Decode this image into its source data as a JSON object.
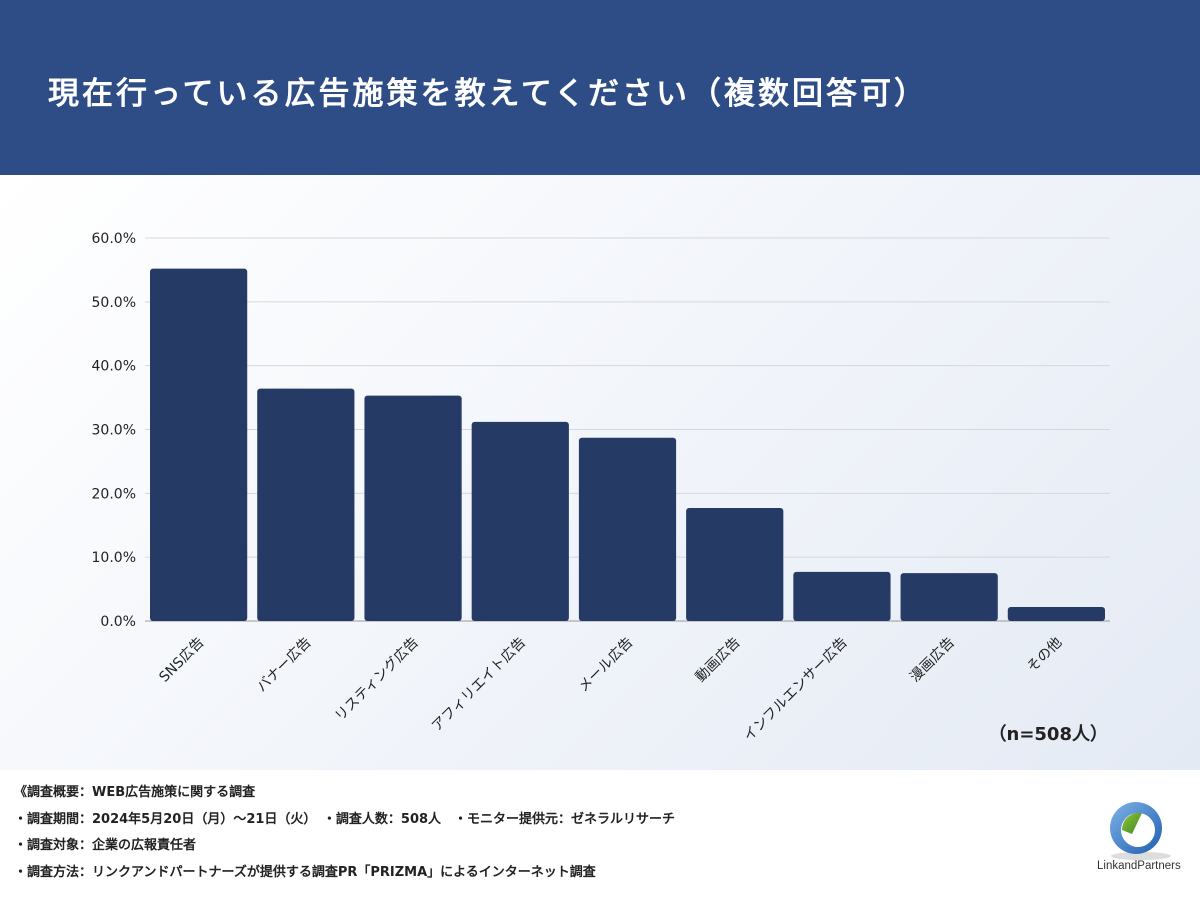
{
  "title": "現在行っている広告施策を教えてください（複数回答可）",
  "sample_note": "（n=508人）",
  "colors": {
    "header": "#2e4d86",
    "bar": "#253b66"
  },
  "chart_data": {
    "type": "bar",
    "title": "現在行っている広告施策を教えてください（複数回答可）",
    "xlabel": "",
    "ylabel": "",
    "categories": [
      "SNS広告",
      "バナー広告",
      "リスティング広告",
      "アフィリエイト広告",
      "メール広告",
      "動画広告",
      "インフルエンサー広告",
      "漫画広告",
      "その他"
    ],
    "values": [
      55.2,
      36.4,
      35.3,
      31.2,
      28.7,
      17.7,
      7.7,
      7.5,
      2.2
    ],
    "unit": "%",
    "ylim": [
      0,
      60
    ],
    "yticks": [
      "0.0%",
      "10.0%",
      "20.0%",
      "30.0%",
      "40.0%",
      "50.0%",
      "60.0%"
    ],
    "grid": true,
    "legend": "none"
  },
  "footer": {
    "lines": [
      "《調査概要：WEB広告施策に関する調査",
      "・調査期間：2024年5月20日（月）～21日（火）　・調査人数：508人　・モニター提供元：ゼネラルリサーチ",
      "・調査対象：企業の広報責任者",
      "・調査方法：リンクアンドパートナーズが提供する調査PR「PRIZMA」によるインターネット調査"
    ]
  },
  "logo": {
    "text": "LinkandPartners"
  }
}
